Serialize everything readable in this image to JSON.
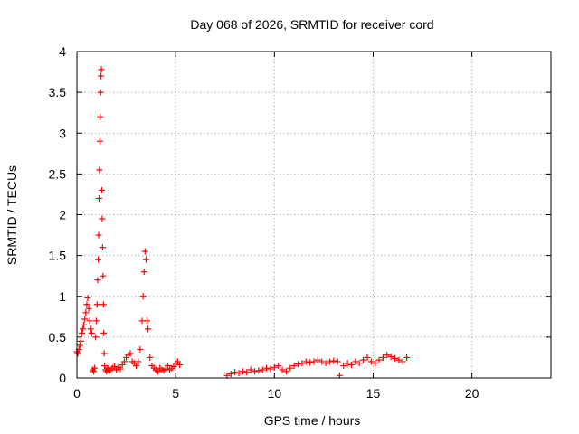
{
  "chart_data": {
    "type": "scatter",
    "title": "Day 068 of 2026, SRMTID for receiver cord",
    "xlabel": "GPS time / hours",
    "ylabel": "SRMTID / TECUs",
    "xlim": [
      0,
      24
    ],
    "ylim": [
      0,
      4
    ],
    "xticks": [
      0,
      5,
      10,
      15,
      20
    ],
    "xtick_labels": [
      "0",
      "5",
      "10",
      "15",
      "20"
    ],
    "yticks": [
      0,
      0.5,
      1,
      1.5,
      2,
      2.5,
      3,
      3.5,
      4
    ],
    "ytick_labels": [
      "0",
      "0.5",
      "1",
      "1.5",
      "2",
      "2.5",
      "3",
      "3.5",
      "4"
    ],
    "grid": true,
    "marker": "+",
    "series_color": "#ff0000",
    "series": [
      {
        "name": "SRMTID",
        "x": [
          0.0,
          0.05,
          0.1,
          0.15,
          0.2,
          0.25,
          0.3,
          0.35,
          0.4,
          0.45,
          0.5,
          0.55,
          0.6,
          0.65,
          0.7,
          0.75,
          0.8,
          0.85,
          0.9,
          0.95,
          0.98,
          1.02,
          1.05,
          1.08,
          1.1,
          1.12,
          1.14,
          1.16,
          1.18,
          1.2,
          1.22,
          1.24,
          1.26,
          1.28,
          1.3,
          1.32,
          1.34,
          1.36,
          1.38,
          1.4,
          1.45,
          1.5,
          1.55,
          1.6,
          1.65,
          1.7,
          1.8,
          1.9,
          2.0,
          2.1,
          2.2,
          2.3,
          2.4,
          2.5,
          2.6,
          2.7,
          2.8,
          2.9,
          3.0,
          3.1,
          3.2,
          3.3,
          3.35,
          3.4,
          3.45,
          3.5,
          3.55,
          3.6,
          3.7,
          3.8,
          3.9,
          4.0,
          4.1,
          4.2,
          4.3,
          4.4,
          4.5,
          4.6,
          4.7,
          4.8,
          4.9,
          5.0,
          5.1,
          5.2,
          7.6,
          7.8,
          8.0,
          8.2,
          8.4,
          8.6,
          8.8,
          9.0,
          9.2,
          9.4,
          9.6,
          9.8,
          10.0,
          10.2,
          10.4,
          10.6,
          10.8,
          11.0,
          11.2,
          11.4,
          11.6,
          11.8,
          12.0,
          12.2,
          12.4,
          12.6,
          12.8,
          13.0,
          13.2,
          13.3,
          13.5,
          13.7,
          13.9,
          14.1,
          14.3,
          14.5,
          14.7,
          14.9,
          15.1,
          15.3,
          15.5,
          15.7,
          15.9,
          16.1,
          16.3,
          16.5,
          16.7
        ],
        "y": [
          0.32,
          0.3,
          0.35,
          0.4,
          0.45,
          0.55,
          0.6,
          0.65,
          0.72,
          0.8,
          0.9,
          0.98,
          0.85,
          0.7,
          0.6,
          0.55,
          0.1,
          0.08,
          0.12,
          0.5,
          0.7,
          0.9,
          1.2,
          1.45,
          1.75,
          2.2,
          2.55,
          2.9,
          3.2,
          3.5,
          3.7,
          3.78,
          2.3,
          1.95,
          1.6,
          1.25,
          0.9,
          0.55,
          0.3,
          0.15,
          0.1,
          0.08,
          0.1,
          0.12,
          0.09,
          0.1,
          0.12,
          0.14,
          0.1,
          0.13,
          0.11,
          0.16,
          0.2,
          0.25,
          0.28,
          0.3,
          0.2,
          0.18,
          0.15,
          0.2,
          0.35,
          0.7,
          1.0,
          1.3,
          1.55,
          1.45,
          0.7,
          0.6,
          0.25,
          0.15,
          0.12,
          0.1,
          0.08,
          0.12,
          0.1,
          0.09,
          0.11,
          0.15,
          0.1,
          0.12,
          0.14,
          0.18,
          0.2,
          0.16,
          0.03,
          0.05,
          0.07,
          0.06,
          0.08,
          0.07,
          0.1,
          0.08,
          0.09,
          0.1,
          0.12,
          0.11,
          0.13,
          0.15,
          0.1,
          0.08,
          0.12,
          0.15,
          0.17,
          0.18,
          0.2,
          0.19,
          0.2,
          0.22,
          0.2,
          0.18,
          0.2,
          0.21,
          0.2,
          0.03,
          0.15,
          0.18,
          0.16,
          0.2,
          0.18,
          0.22,
          0.25,
          0.2,
          0.18,
          0.22,
          0.25,
          0.28,
          0.26,
          0.24,
          0.22,
          0.2,
          0.25
        ]
      }
    ]
  }
}
